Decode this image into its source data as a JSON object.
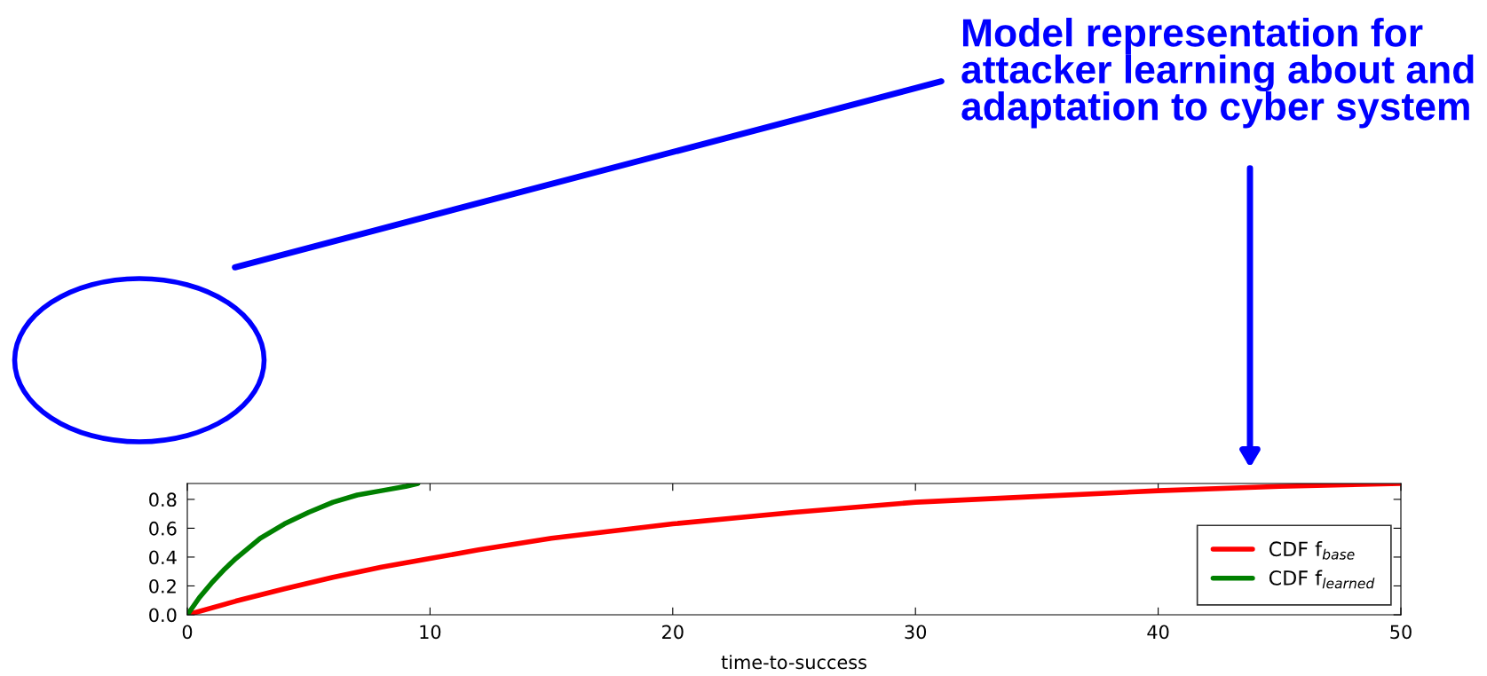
{
  "chart_data": {
    "type": "line",
    "xlabel": "time-to-success",
    "annotations": [
      "Model representation for\nattacker learning about and\nadaptation to cyber system"
    ],
    "series": [
      {
        "name": "CDF f$_{base}$",
        "color": "#ff0000",
        "x": [
          0,
          2,
          4,
          6,
          8,
          10,
          12,
          15,
          18,
          20,
          25,
          30,
          35,
          40,
          45,
          50
        ],
        "values": [
          0,
          0.095,
          0.18,
          0.26,
          0.33,
          0.39,
          0.45,
          0.53,
          0.59,
          0.63,
          0.71,
          0.78,
          0.82,
          0.86,
          0.89,
          0.91
        ]
      },
      {
        "name": "CDF f$_{learned}$",
        "color": "#008000",
        "x": [
          0,
          0.5,
          1,
          1.5,
          2,
          3,
          4,
          5,
          6,
          7,
          8,
          9,
          9.5
        ],
        "values": [
          0,
          0.12,
          0.22,
          0.31,
          0.39,
          0.53,
          0.63,
          0.71,
          0.78,
          0.83,
          0.86,
          0.89,
          0.91
        ]
      }
    ],
    "xlim": [
      0,
      50
    ],
    "ylim": [
      0,
      0.91
    ],
    "xticks": [
      0,
      10,
      20,
      30,
      40,
      50
    ],
    "yticks": [
      {
        "value": 0,
        "label": "0.0"
      },
      {
        "value": 0.2,
        "label": "0.2"
      },
      {
        "value": 0.4,
        "label": "0.4"
      },
      {
        "value": 0.6,
        "label": "0.6"
      },
      {
        "value": 0.8,
        "label": "0.8"
      }
    ],
    "legend": "lower right",
    "grid": false,
    "line_style": "solid",
    "marker": "none"
  }
}
